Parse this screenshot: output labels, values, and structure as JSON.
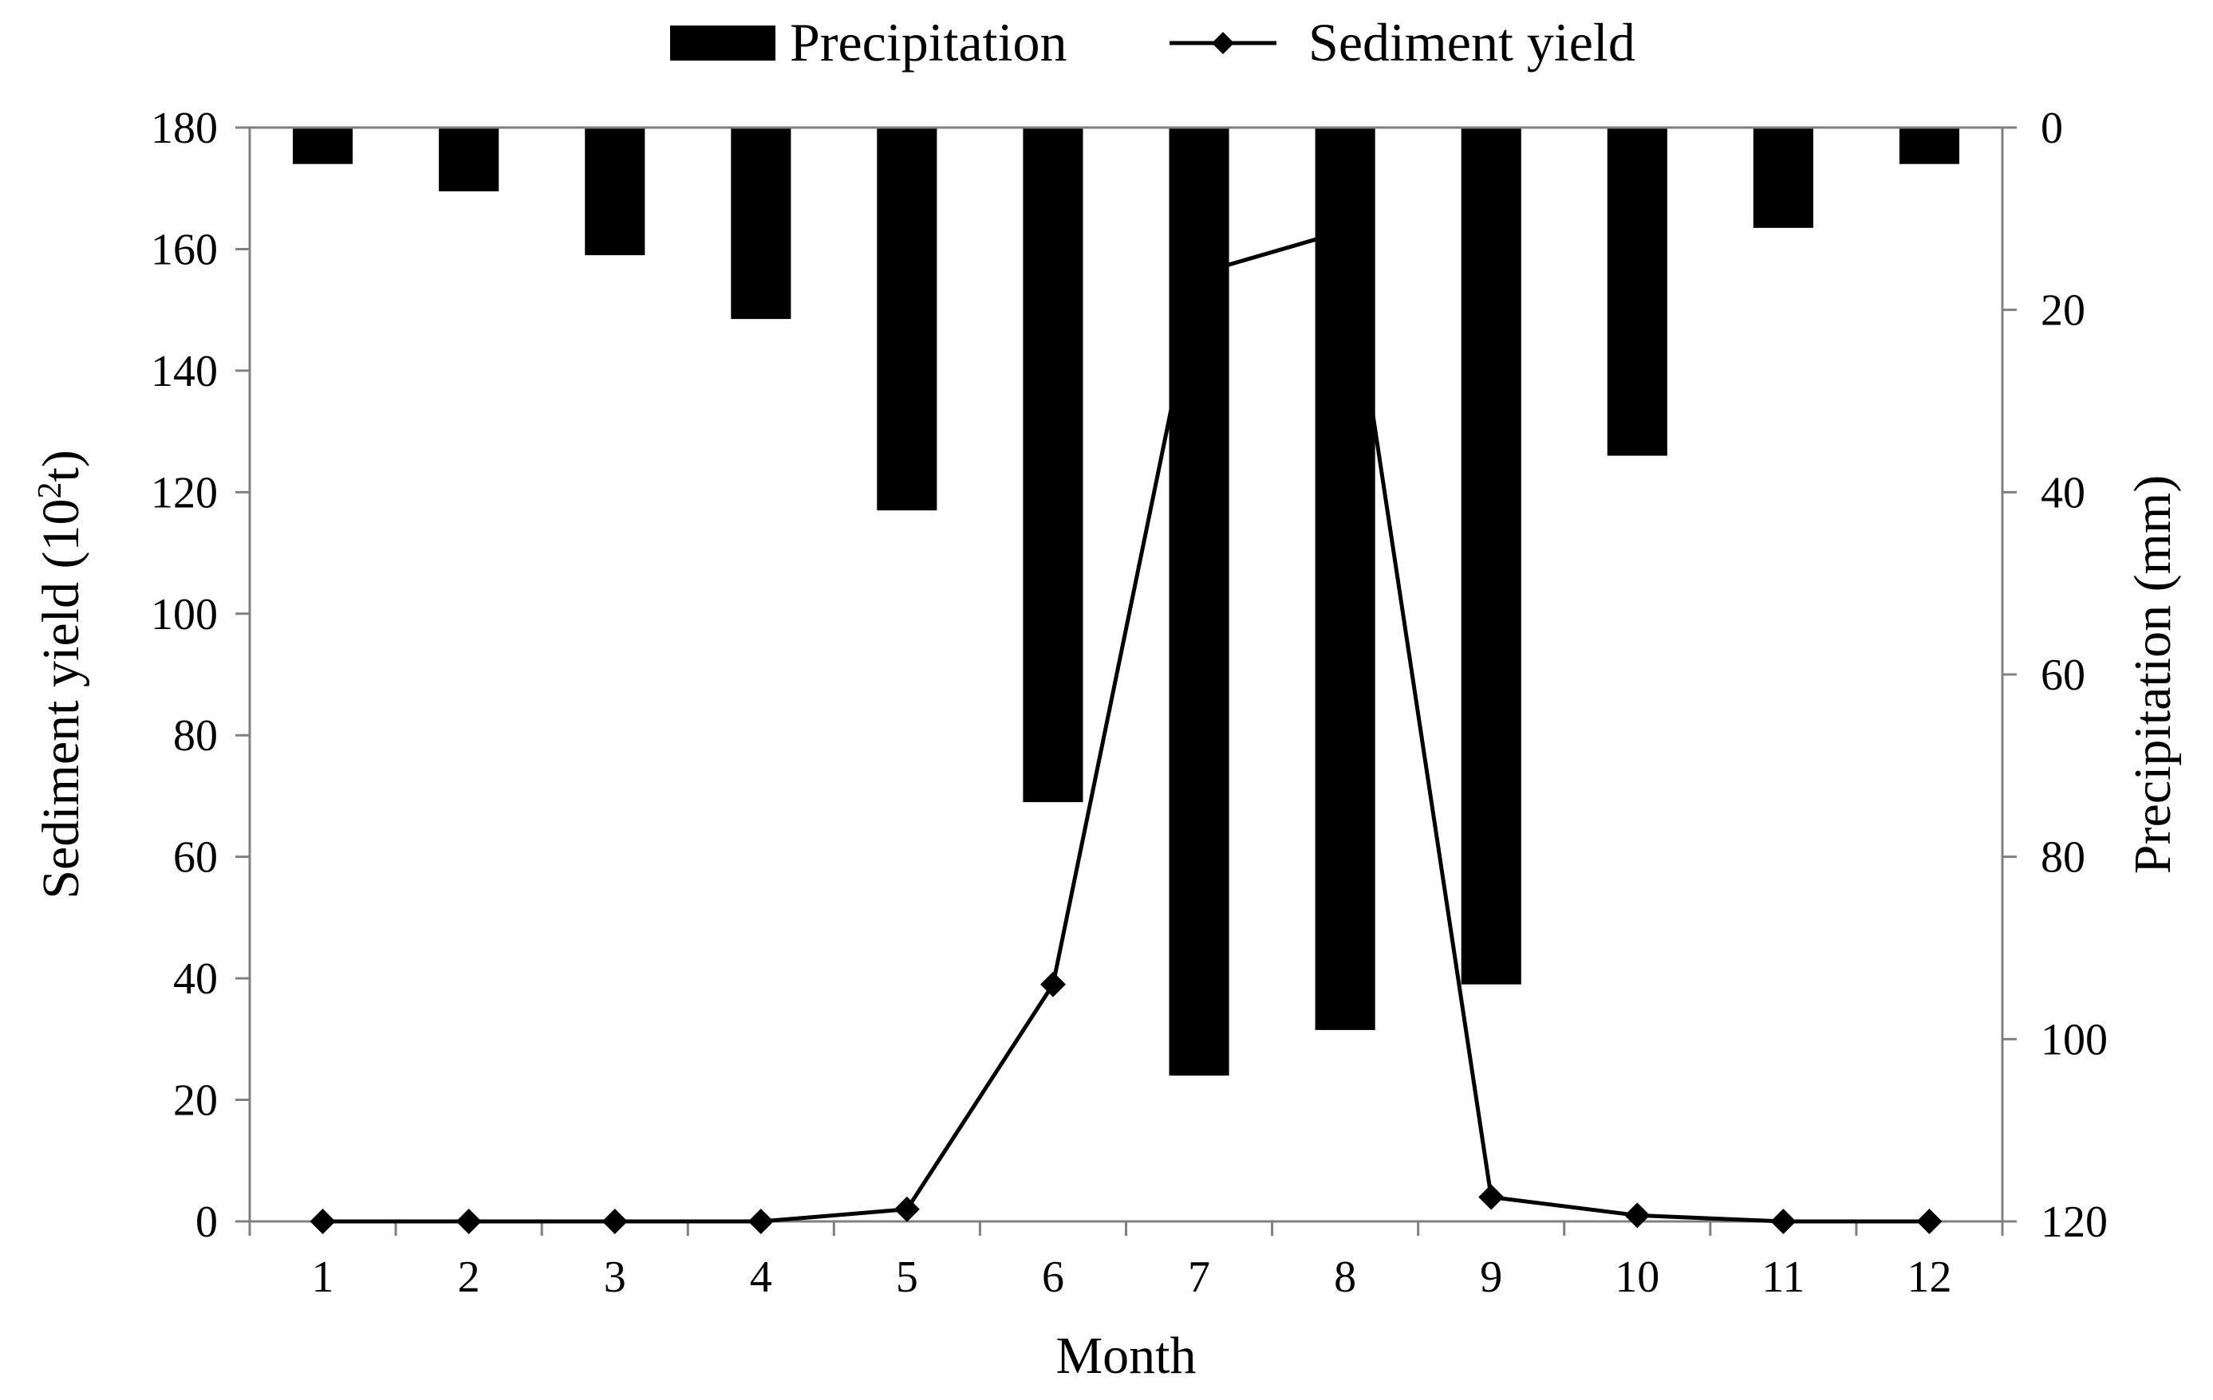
{
  "chart_data": {
    "type": "bar+line",
    "title": "",
    "xlabel": "Month",
    "ylabel_left": "Sediment yield (10",
    "ylabel_left_sup": "2",
    "ylabel_left_tail": "t)",
    "ylabel_right": "Precipitation (mm)",
    "categories": [
      "1",
      "2",
      "3",
      "4",
      "5",
      "6",
      "7",
      "8",
      "9",
      "10",
      "11",
      "12"
    ],
    "y_left": {
      "min": 0,
      "max": 180,
      "ticks": [
        "0",
        "20",
        "40",
        "60",
        "80",
        "100",
        "120",
        "140",
        "160",
        "180"
      ]
    },
    "y_right": {
      "min": 0,
      "max": 120,
      "inverted": true,
      "ticks": [
        "0",
        "20",
        "40",
        "60",
        "80",
        "100",
        "120"
      ]
    },
    "series": [
      {
        "name": "Precipitation",
        "kind": "bar",
        "axis": "right",
        "color": "#000000",
        "values": [
          4,
          7,
          14,
          21,
          42,
          74,
          104,
          99,
          94,
          36,
          11,
          4
        ]
      },
      {
        "name": "Sediment yield",
        "kind": "line",
        "axis": "left",
        "color": "#000000",
        "marker": "diamond",
        "values": [
          0,
          0,
          0,
          0,
          2,
          39,
          156,
          163,
          4,
          1,
          0,
          0
        ]
      }
    ],
    "legend": {
      "position": "top-center",
      "items": [
        "Precipitation",
        "Sediment yield"
      ]
    },
    "grid": false
  }
}
